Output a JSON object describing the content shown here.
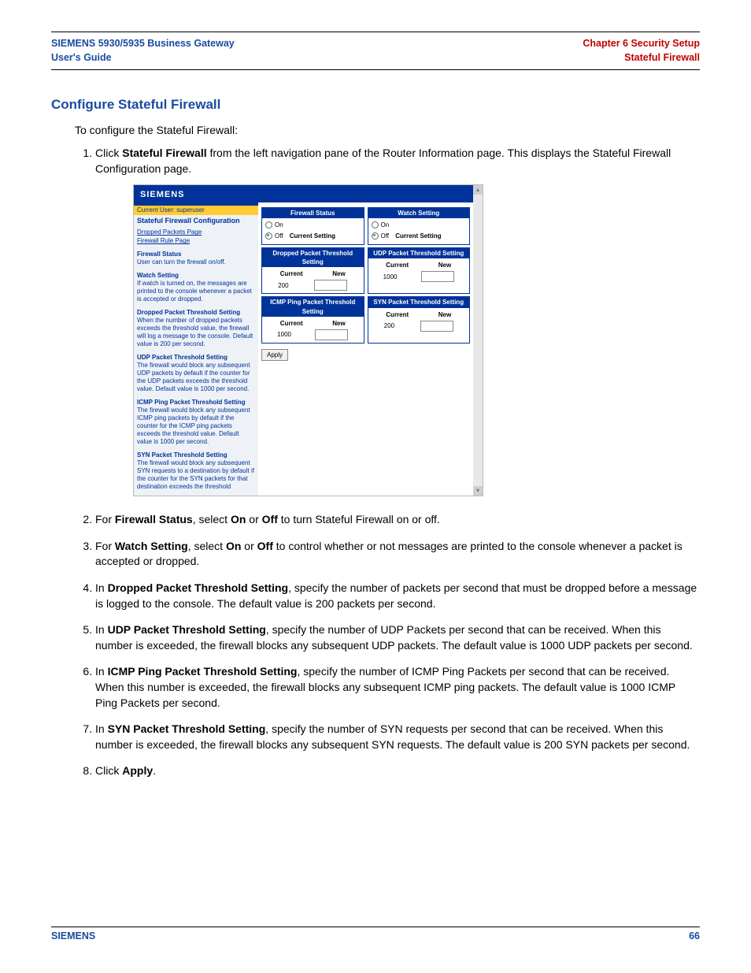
{
  "header": {
    "product": "SIEMENS 5930/5935 Business Gateway",
    "guide": "User's Guide",
    "chapter": "Chapter 6  Security Setup",
    "section": "Stateful Firewall"
  },
  "title": "Configure Stateful Firewall",
  "intro": "To configure the Stateful Firewall:",
  "steps": {
    "s1a": "Click ",
    "s1b": "Stateful Firewall",
    "s1c": " from the left navigation pane of the Router Information page. This displays the Stateful Firewall Configuration page.",
    "s2a": "For ",
    "s2b": "Firewall Status",
    "s2c": ", select ",
    "s2d": "On",
    "s2e": " or ",
    "s2f": "Off",
    "s2g": " to turn Stateful Firewall on or off.",
    "s3a": "For ",
    "s3b": "Watch Setting",
    "s3c": ", select ",
    "s3d": "On",
    "s3e": " or ",
    "s3f": "Off",
    "s3g": " to control whether or not messages are printed to the console whenever a packet is accepted or dropped.",
    "s4a": "In ",
    "s4b": "Dropped Packet Threshold Setting",
    "s4c": ", specify the number of packets per second that must be dropped before a message is logged to the console. The default value is 200 packets per second.",
    "s5a": "In ",
    "s5b": "UDP Packet Threshold Setting",
    "s5c": ", specify the number of UDP Packets per second that can be received. When this number is exceeded, the firewall blocks any subsequent UDP packets. The default value is 1000 UDP packets per second.",
    "s6a": "In ",
    "s6b": "ICMP Ping Packet Threshold Setting",
    "s6c": ", specify the number of ICMP Ping Packets per second that can be received. When this number is exceeded, the firewall blocks any subsequent ICMP ping packets. The default value is 1000 ICMP Ping Packets per second.",
    "s7a": "In ",
    "s7b": "SYN Packet Threshold Setting",
    "s7c": ", specify the number of SYN requests per second that can be received. When this number is exceeded, the firewall blocks any subsequent SYN requests. The default value is 200 SYN packets per second.",
    "s8a": "Click ",
    "s8b": "Apply",
    "s8c": "."
  },
  "shot": {
    "brand": "SIEMENS",
    "user": "Current User: superuser",
    "cfg_title": "Stateful Firewall Configuration",
    "link1": "Dropped Packets Page",
    "link2": "Firewall Rule Page",
    "h_status": "Firewall Status",
    "p_status": "User can turn the firewall on/off.",
    "h_watch": "Watch Setting",
    "p_watch": "If watch is turned on, the messages are printed to the console whenever a packet is accepted or dropped.",
    "h_drop": "Dropped Packet Threshold Setting",
    "p_drop": "When the number of dropped packets exceeds the threshold value, the firewall will log a message to the console. Default value is 200 per second.",
    "h_udp": "UDP Packet Threshold Setting",
    "p_udp": "The firewall would block any subsequent UDP packets by default if the counter for the UDP packets exceeds the threshold value. Default value is 1000 per second.",
    "h_icmp": "ICMP Ping Packet Threshold Setting",
    "p_icmp": "The firewall would block any subsequent ICMP ping packets by default if the counter for the ICMP ping packets exceeds the threshold value. Default value is 1000 per second.",
    "h_syn": "SYN Packet Threshold Setting",
    "p_syn": "The firewall would block any subsequent SYN requests to a destination by default if the counter for the SYN packets for that destination exceeds the threshold",
    "box_fw": "Firewall Status",
    "box_watch": "Watch Setting",
    "box_drop": "Dropped Packet Threshold Setting",
    "box_udp": "UDP Packet Threshold Setting",
    "box_icmp": "ICMP Ping Packet Threshold Setting",
    "box_syn": "SYN Packet Threshold Setting",
    "on": "On",
    "off": "Off",
    "cur_set": "Current Setting",
    "current": "Current",
    "new": "New",
    "v200": "200",
    "v1000": "1000",
    "apply": "Apply"
  },
  "footer": {
    "brand": "SIEMENS",
    "page": "66"
  }
}
